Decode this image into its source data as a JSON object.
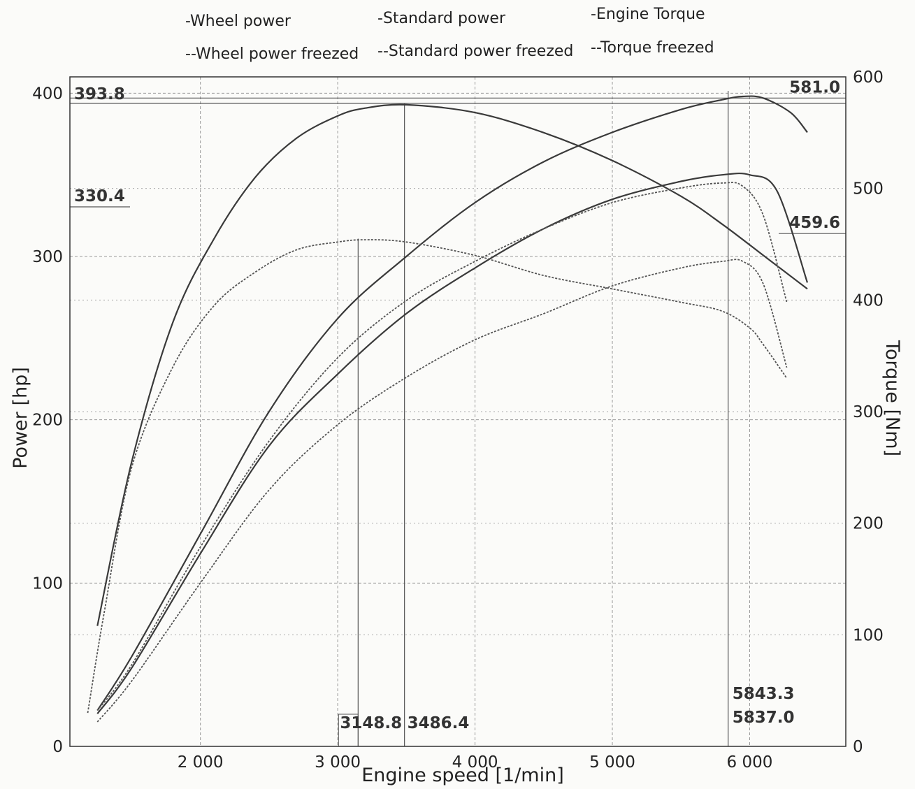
{
  "chart_data": {
    "type": "line",
    "legend": [
      {
        "marker": "-",
        "label": "Wheel power"
      },
      {
        "marker": "-",
        "label": "Standard power"
      },
      {
        "marker": "-",
        "label": "Engine Torque"
      },
      {
        "marker": "--",
        "label": "Wheel power freezed"
      },
      {
        "marker": "--",
        "label": "Standard power freezed"
      },
      {
        "marker": "--",
        "label": "Torque freezed"
      }
    ],
    "xlabel": "Engine speed [1/min]",
    "ylabel_left": "Power [hp]",
    "ylabel_right": "Torque [Nm]",
    "xlim": [
      1050,
      6700
    ],
    "ylim_left": [
      0,
      410
    ],
    "ylim_right": [
      0,
      600
    ],
    "x_ticks": [
      {
        "value": 2000,
        "label": "2 000"
      },
      {
        "value": 3000,
        "label": "3 000"
      },
      {
        "value": 4000,
        "label": "4 000"
      },
      {
        "value": 5000,
        "label": "5 000"
      },
      {
        "value": 6000,
        "label": "6 000"
      }
    ],
    "y_ticks_left": [
      {
        "value": 0,
        "label": "0"
      },
      {
        "value": 100,
        "label": "100"
      },
      {
        "value": 200,
        "label": "200"
      },
      {
        "value": 300,
        "label": "300"
      },
      {
        "value": 400,
        "label": "400"
      }
    ],
    "y_ticks_right": [
      {
        "value": 0,
        "label": "0"
      },
      {
        "value": 100,
        "label": "100"
      },
      {
        "value": 200,
        "label": "200"
      },
      {
        "value": 300,
        "label": "300"
      },
      {
        "value": 400,
        "label": "400"
      },
      {
        "value": 500,
        "label": "500"
      },
      {
        "value": 600,
        "label": "600"
      }
    ],
    "grid": true,
    "annotations": [
      {
        "text": "393.8",
        "axis": "left",
        "value": 393.8
      },
      {
        "text": "330.4",
        "axis": "left",
        "value": 330.4
      },
      {
        "text": "581.0",
        "axis": "right",
        "value": 581.0
      },
      {
        "text": "459.6",
        "axis": "right",
        "value": 459.6
      },
      {
        "text": "3148.8",
        "axis": "x",
        "value": 3148.8
      },
      {
        "text": "3486.4",
        "axis": "x",
        "value": 3486.4
      },
      {
        "text": "5843.3",
        "axis": "x",
        "value": 5843.3
      },
      {
        "text": "5837.0",
        "axis": "x",
        "value": 5837.0
      }
    ],
    "series": [
      {
        "name": "Standard power",
        "axis": "left",
        "style": "solid",
        "x": [
          1250,
          1500,
          2000,
          2500,
          3000,
          3500,
          4000,
          4500,
          5000,
          5500,
          5800,
          5950,
          6100,
          6300,
          6420
        ],
        "y": [
          22,
          55,
          130,
          205,
          262,
          300,
          333,
          358,
          376,
          390,
          396,
          398,
          397,
          388,
          376
        ]
      },
      {
        "name": "Wheel power",
        "axis": "left",
        "style": "solid",
        "x": [
          1250,
          1500,
          2000,
          2500,
          3000,
          3500,
          4000,
          4500,
          5000,
          5500,
          5800,
          6000,
          6200,
          6420
        ],
        "y": [
          20,
          48,
          118,
          184,
          228,
          265,
          293,
          317,
          335,
          346,
          350,
          350,
          340,
          284
        ]
      },
      {
        "name": "Engine Torque",
        "axis": "right",
        "style": "solid",
        "x": [
          1250,
          1500,
          1800,
          2100,
          2400,
          2700,
          3000,
          3200,
          3500,
          4000,
          4500,
          5000,
          5500,
          5800,
          6100,
          6420
        ],
        "y": [
          108,
          255,
          380,
          455,
          510,
          545,
          565,
          572,
          575,
          568,
          550,
          525,
          493,
          468,
          440,
          410
        ]
      },
      {
        "name": "Standard power freezed",
        "axis": "left",
        "style": "dashed",
        "x": [
          1250,
          1500,
          2000,
          2500,
          3000,
          3500,
          4000,
          4500,
          5000,
          5500,
          5800,
          5950,
          6100,
          6270
        ],
        "y": [
          22,
          50,
          122,
          187,
          238,
          273,
          297,
          317,
          333,
          342,
          345,
          343,
          325,
          272
        ]
      },
      {
        "name": "Wheel power freezed",
        "axis": "left",
        "style": "dashed",
        "x": [
          1250,
          1500,
          2000,
          2500,
          3000,
          3500,
          4000,
          4500,
          5000,
          5500,
          5800,
          5950,
          6100,
          6270
        ],
        "y": [
          15,
          40,
          100,
          157,
          197,
          226,
          249,
          265,
          282,
          293,
          297,
          297,
          283,
          232
        ]
      },
      {
        "name": "Torque freezed",
        "axis": "right",
        "style": "dashed",
        "x": [
          1180,
          1300,
          1500,
          1800,
          2100,
          2400,
          2700,
          3000,
          3200,
          3500,
          4000,
          4500,
          5000,
          5500,
          5800,
          6000,
          6100,
          6270
        ],
        "y": [
          30,
          120,
          250,
          340,
          395,
          425,
          445,
          452,
          454,
          452,
          440,
          422,
          410,
          398,
          390,
          375,
          360,
          330
        ]
      }
    ]
  }
}
